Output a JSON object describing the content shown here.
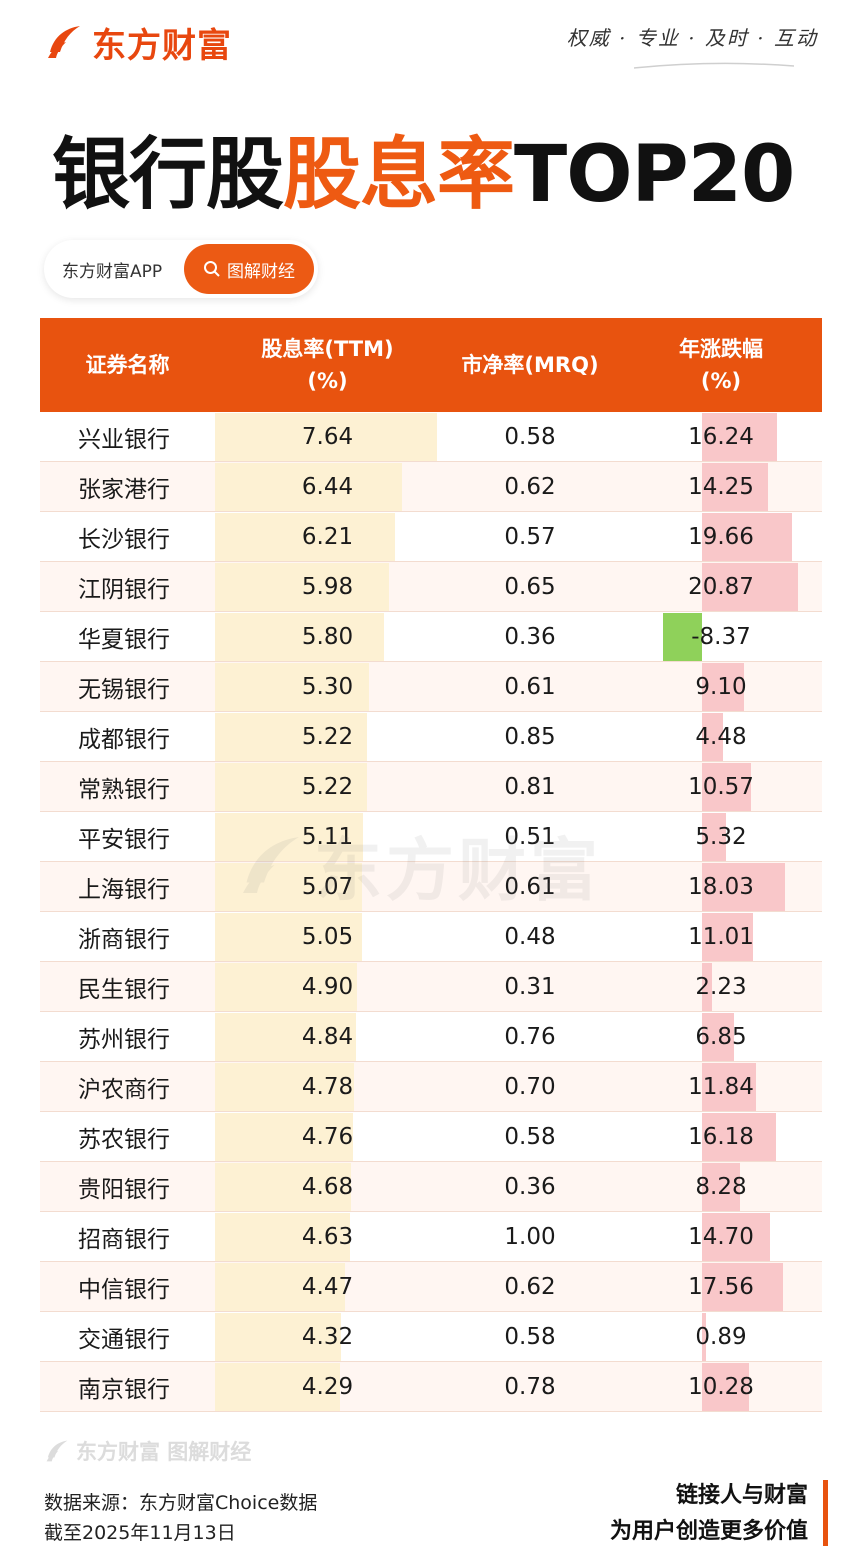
{
  "brand": {
    "name": "东方财富",
    "slogan": "权威 · 专业 · 及时 · 互动"
  },
  "title": {
    "part1": "银行股",
    "part2": "股息率",
    "part3": "TOP20"
  },
  "search": {
    "text": "东方财富APP",
    "button": "图解财经"
  },
  "table": {
    "headers": {
      "name": "证券名称",
      "yield_line1": "股息率(TTM)",
      "yield_line2": "(%)",
      "pb": "市净率(MRQ)",
      "chg_line1": "年涨跌幅",
      "chg_line2": "(%)"
    }
  },
  "chart_data": {
    "type": "table",
    "columns": [
      "证券名称",
      "股息率(TTM)(%)",
      "市净率(MRQ)",
      "年涨跌幅(%)"
    ],
    "rows": [
      {
        "name": "兴业银行",
        "yield": "7.64",
        "pb": "0.58",
        "chg": "16.24"
      },
      {
        "name": "张家港行",
        "yield": "6.44",
        "pb": "0.62",
        "chg": "14.25"
      },
      {
        "name": "长沙银行",
        "yield": "6.21",
        "pb": "0.57",
        "chg": "19.66"
      },
      {
        "name": "江阴银行",
        "yield": "5.98",
        "pb": "0.65",
        "chg": "20.87"
      },
      {
        "name": "华夏银行",
        "yield": "5.80",
        "pb": "0.36",
        "chg": "-8.37"
      },
      {
        "name": "无锡银行",
        "yield": "5.30",
        "pb": "0.61",
        "chg": "9.10"
      },
      {
        "name": "成都银行",
        "yield": "5.22",
        "pb": "0.85",
        "chg": "4.48"
      },
      {
        "name": "常熟银行",
        "yield": "5.22",
        "pb": "0.81",
        "chg": "10.57"
      },
      {
        "name": "平安银行",
        "yield": "5.11",
        "pb": "0.51",
        "chg": "5.32"
      },
      {
        "name": "上海银行",
        "yield": "5.07",
        "pb": "0.61",
        "chg": "18.03"
      },
      {
        "name": "浙商银行",
        "yield": "5.05",
        "pb": "0.48",
        "chg": "11.01"
      },
      {
        "name": "民生银行",
        "yield": "4.90",
        "pb": "0.31",
        "chg": "2.23"
      },
      {
        "name": "苏州银行",
        "yield": "4.84",
        "pb": "0.76",
        "chg": "6.85"
      },
      {
        "name": "沪农商行",
        "yield": "4.78",
        "pb": "0.70",
        "chg": "11.84"
      },
      {
        "name": "苏农银行",
        "yield": "4.76",
        "pb": "0.58",
        "chg": "16.18"
      },
      {
        "name": "贵阳银行",
        "yield": "4.68",
        "pb": "0.36",
        "chg": "8.28"
      },
      {
        "name": "招商银行",
        "yield": "4.63",
        "pb": "1.00",
        "chg": "14.70"
      },
      {
        "name": "中信银行",
        "yield": "4.47",
        "pb": "0.62",
        "chg": "17.56"
      },
      {
        "name": "交通银行",
        "yield": "4.32",
        "pb": "0.58",
        "chg": "0.89"
      },
      {
        "name": "南京银行",
        "yield": "4.29",
        "pb": "0.78",
        "chg": "10.28"
      }
    ]
  },
  "colors": {
    "brand_orange": "#e8530f",
    "yield_bar": "#fdf1d3",
    "positive_bar": "#f9c7c9",
    "negative_bar": "#8fd15a"
  },
  "watermark": {
    "text": "东方财富"
  },
  "footer": {
    "watermark_text": "东方财富 图解财经",
    "source": "数据来源：东方财富Choice数据",
    "date": "截至2025年11月13日",
    "tagline1": "链接人与财富",
    "tagline2": "为用户创造更多价值"
  }
}
